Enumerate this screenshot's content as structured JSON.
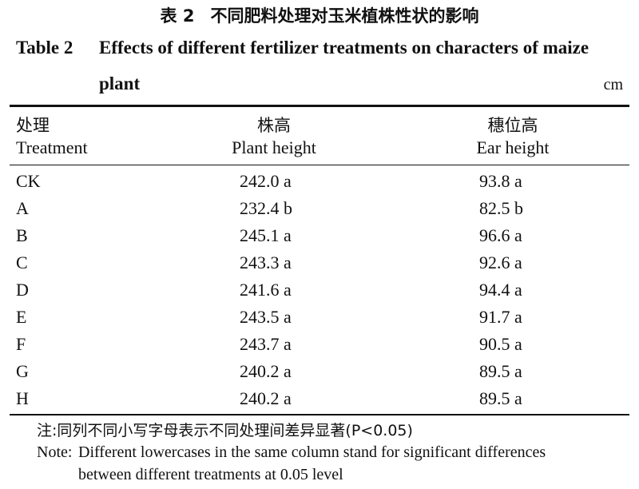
{
  "title_cn": {
    "label": "表 2",
    "text": "不同肥料处理对玉米植株性状的影响"
  },
  "title_en": {
    "label": "Table 2",
    "line1": "Effects of different fertilizer treatments on characters of maize",
    "line2": "plant"
  },
  "unit": "cm",
  "headers": [
    {
      "cn": "处理",
      "en": "Treatment"
    },
    {
      "cn": "株高",
      "en": "Plant height"
    },
    {
      "cn": "穗位高",
      "en": "Ear height"
    }
  ],
  "rows": [
    {
      "treatment": "CK",
      "plant_height": "242.0 a",
      "ear_height": "93.8 a"
    },
    {
      "treatment": "A",
      "plant_height": "232.4 b",
      "ear_height": "82.5 b"
    },
    {
      "treatment": "B",
      "plant_height": "245.1 a",
      "ear_height": "96.6 a"
    },
    {
      "treatment": "C",
      "plant_height": "243.3 a",
      "ear_height": "92.6 a"
    },
    {
      "treatment": "D",
      "plant_height": "241.6 a",
      "ear_height": "94.4 a"
    },
    {
      "treatment": "E",
      "plant_height": "243.5 a",
      "ear_height": "91.7 a"
    },
    {
      "treatment": "F",
      "plant_height": "243.7 a",
      "ear_height": "90.5 a"
    },
    {
      "treatment": "G",
      "plant_height": "240.2 a",
      "ear_height": "89.5 a"
    },
    {
      "treatment": "H",
      "plant_height": "240.2 a",
      "ear_height": "89.5 a"
    }
  ],
  "note_cn": "注:同列不同小写字母表示不同处理间差异显著(P<0.05)",
  "note_en": {
    "label": "Note:",
    "line1": "Different lowercases in the same column stand for significant differences",
    "line2": "between different treatments at 0.05 level"
  }
}
